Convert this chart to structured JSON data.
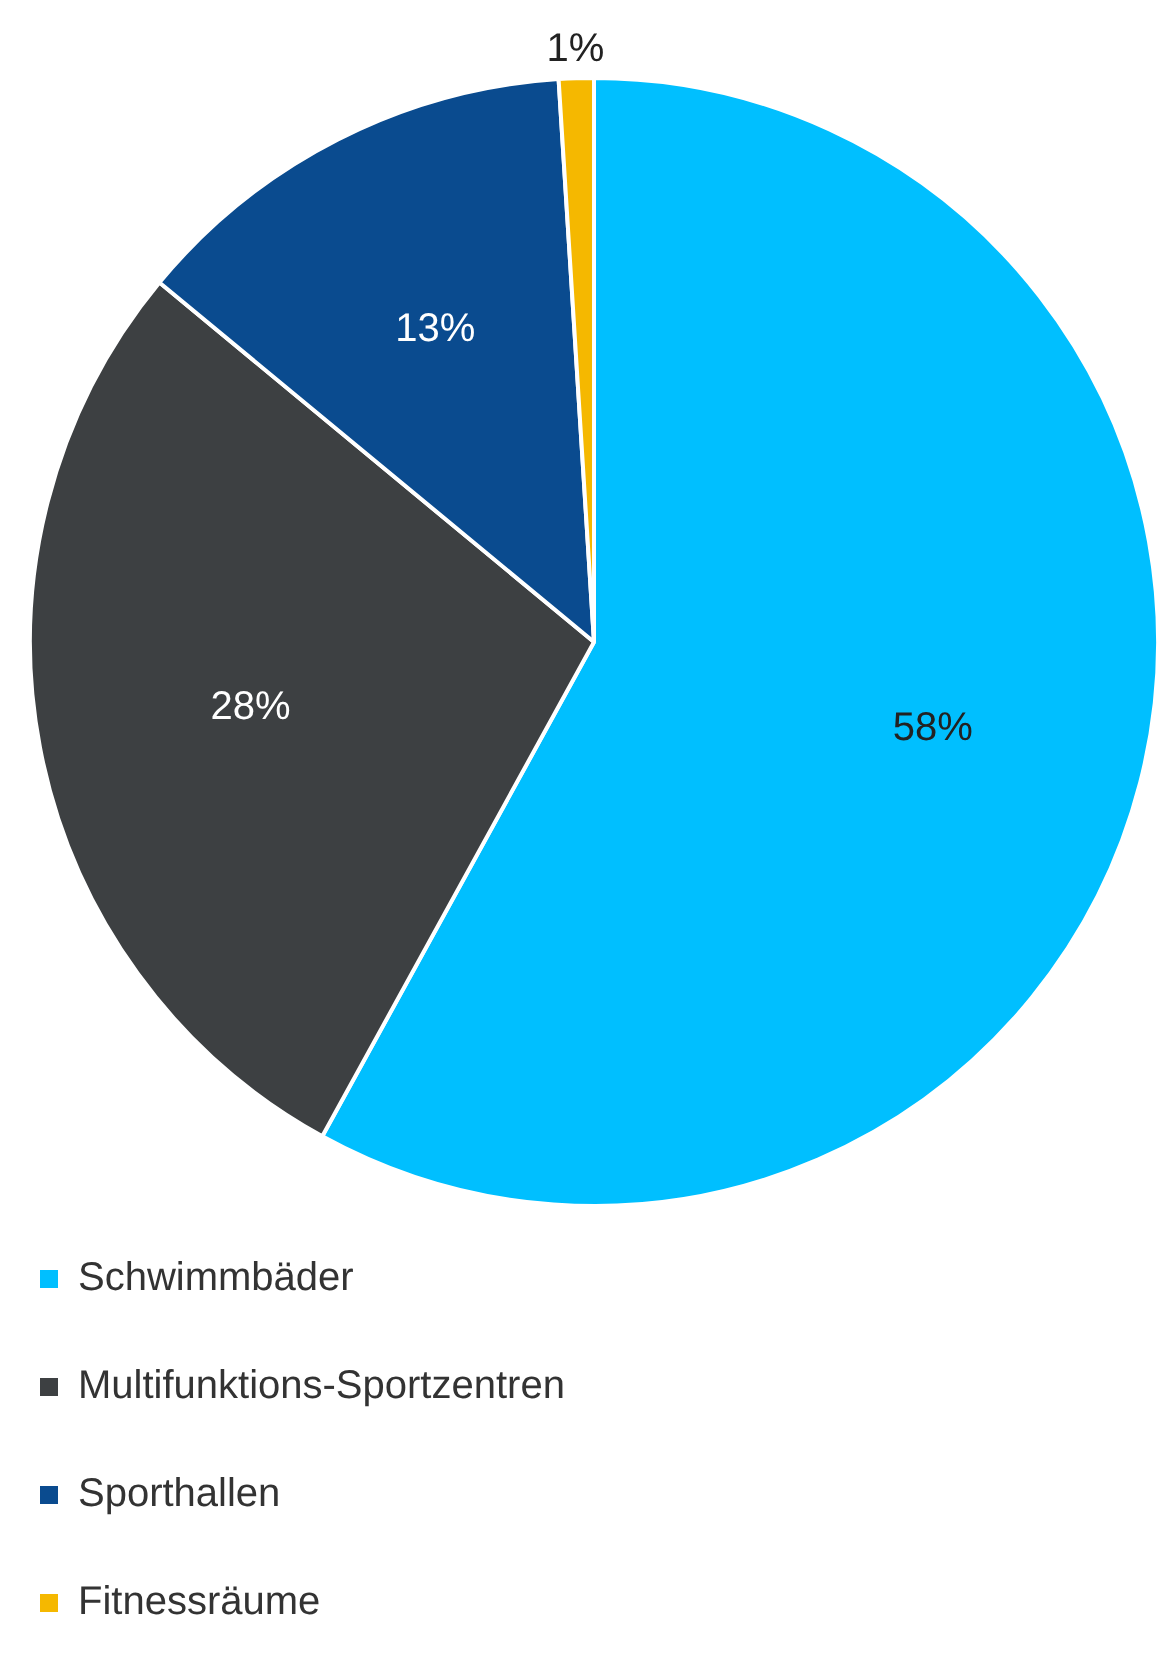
{
  "chart_data": {
    "type": "pie",
    "categories": [
      "Schwimmbäder",
      "Multifunktions-Sportzentren",
      "Sporthallen",
      "Fitnessräume"
    ],
    "values": [
      58,
      28,
      13,
      1
    ],
    "colors": [
      "#00bfff",
      "#3d4042",
      "#0a4b8f",
      "#f5b800"
    ],
    "value_labels": [
      "58%",
      "28%",
      "13%",
      "1%"
    ],
    "legend": "bottom"
  }
}
